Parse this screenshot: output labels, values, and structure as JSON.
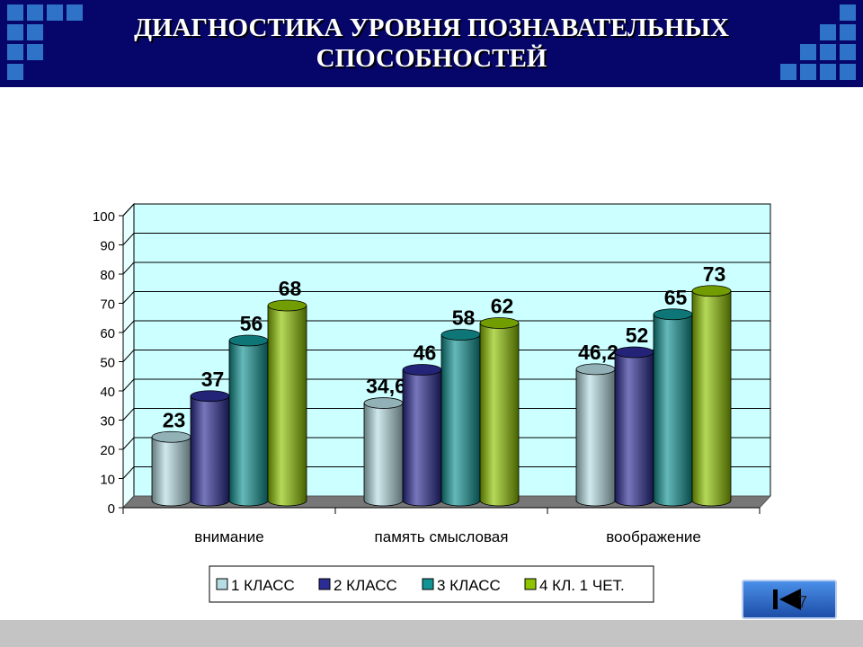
{
  "title_line1": "ДИАГНОСТИКА УРОВНЯ ПОЗНАВАТЕЛЬНЫХ",
  "title_line2": "СПОСОБНОСТЕЙ",
  "page_number": "7",
  "colors": {
    "header": "#06066a",
    "header_squares": "#2f73c8",
    "wall": "#ccffff",
    "floor": "#777777",
    "footer": "#c4c4c4"
  },
  "nav_button": {
    "icon": "first-slide-icon"
  },
  "chart_data": {
    "type": "bar",
    "title": "",
    "xlabel": "",
    "ylabel": "",
    "ylim": [
      0,
      100
    ],
    "yticks": [
      0,
      10,
      20,
      30,
      40,
      50,
      60,
      70,
      80,
      90,
      100
    ],
    "grid": true,
    "legend_position": "bottom",
    "categories": [
      "внимание",
      "память смысловая",
      "воображение"
    ],
    "series": [
      {
        "name": "1 КЛАСС",
        "values": [
          23,
          34.6,
          46.2
        ],
        "labels": [
          "23",
          "34,6",
          "46,2"
        ],
        "color": "#b6dde3"
      },
      {
        "name": "2 КЛАСС",
        "values": [
          37,
          46,
          52
        ],
        "labels": [
          "37",
          "46",
          "52"
        ],
        "color": "#2c2c96"
      },
      {
        "name": "3 КЛАСС",
        "values": [
          56,
          58,
          65
        ],
        "labels": [
          "56",
          "58",
          "65"
        ],
        "color": "#129394"
      },
      {
        "name": "4 КЛ. 1 ЧЕТ.",
        "values": [
          68,
          62,
          73
        ],
        "labels": [
          "68",
          "62",
          "73"
        ],
        "color": "#8fc400"
      }
    ]
  }
}
